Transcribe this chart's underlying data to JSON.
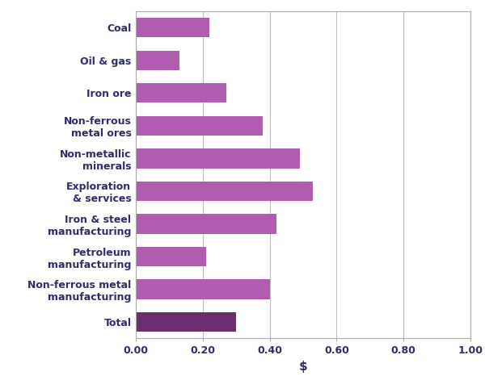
{
  "categories": [
    "Total",
    "Non-ferrous metal\nmanufacturing",
    "Petroleum\nmanufacturing",
    "Iron & steel\nmanufacturing",
    "Exploration\n& services",
    "Non-metallic\nminerals",
    "Non-ferrous\nmetal ores",
    "Iron ore",
    "Oil & gas",
    "Coal"
  ],
  "values": [
    0.3,
    0.4,
    0.21,
    0.42,
    0.53,
    0.49,
    0.38,
    0.27,
    0.13,
    0.22
  ],
  "bar_colors": [
    "#6b2d6b",
    "#b05cb0",
    "#b05cb0",
    "#b05cb0",
    "#b05cb0",
    "#b05cb0",
    "#b05cb0",
    "#b05cb0",
    "#b05cb0",
    "#b05cb0"
  ],
  "xlabel": "$",
  "xlim": [
    0,
    1.0
  ],
  "xticks": [
    0.0,
    0.2,
    0.4,
    0.6,
    0.8,
    1.0
  ],
  "xticklabels": [
    "0.00",
    "0.20",
    "0.40",
    "0.60",
    "0.80",
    "1.00"
  ],
  "grid_color": "#bbbbbb",
  "background_color": "#ffffff",
  "label_color": "#2d2d6b",
  "label_fontsize": 9.0,
  "bar_height": 0.6
}
